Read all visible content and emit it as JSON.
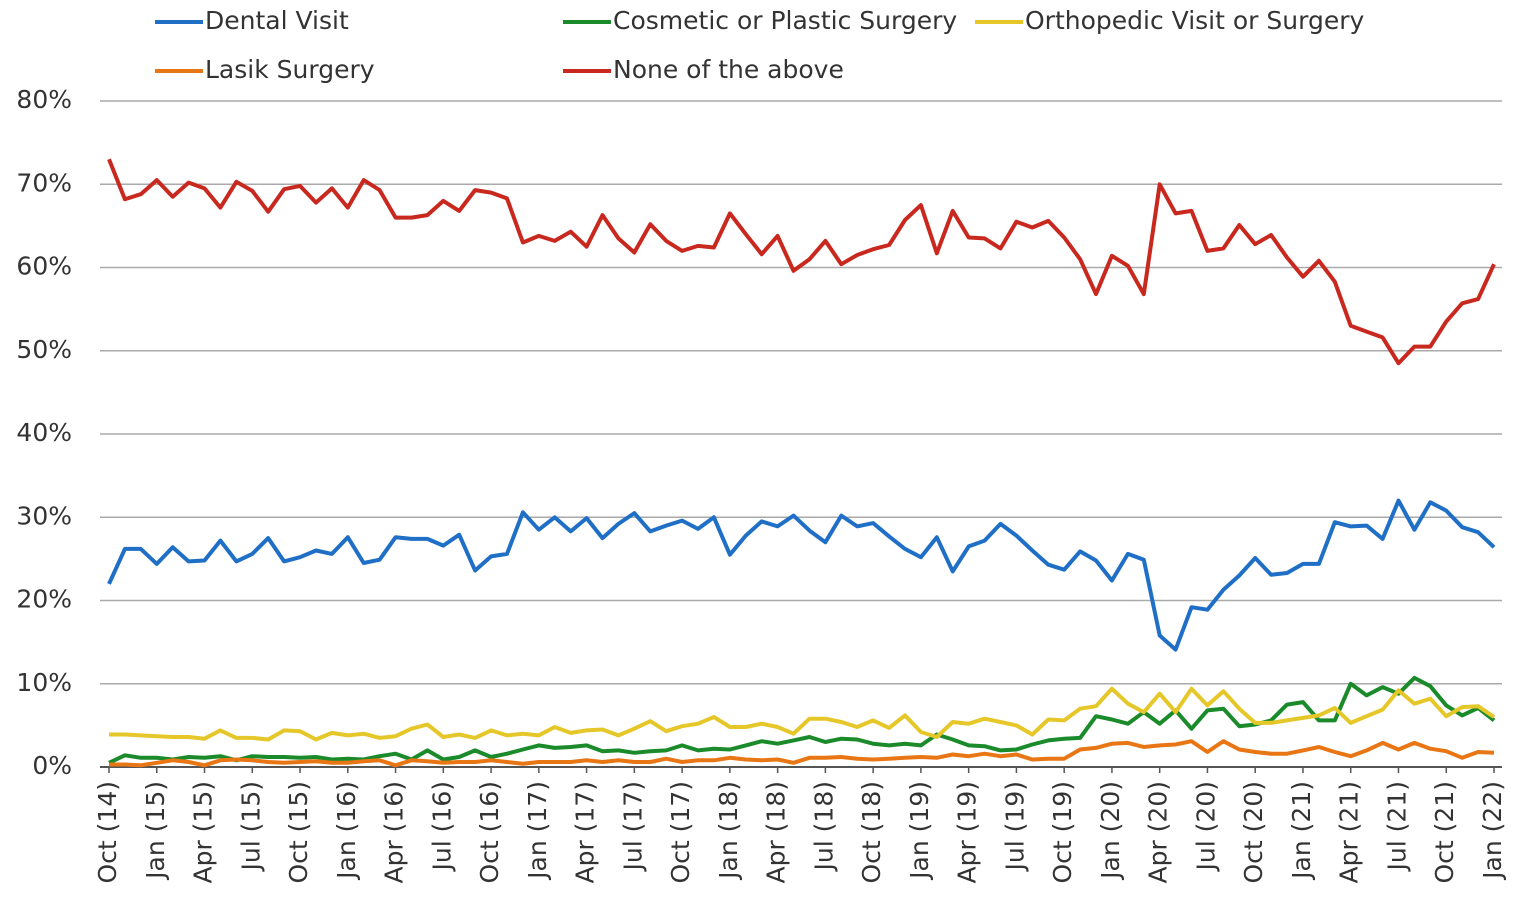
{
  "chart_data": {
    "type": "line",
    "categories": [
      "Oct (14)",
      null,
      null,
      "Jan (15)",
      null,
      null,
      "Apr (15)",
      null,
      null,
      "Jul (15)",
      null,
      null,
      "Oct (15)",
      null,
      null,
      "Jan (16)",
      null,
      null,
      "Apr (16)",
      null,
      null,
      "Jul (16)",
      null,
      null,
      "Oct (16)",
      null,
      null,
      "Jan (17)",
      null,
      null,
      "Apr (17)",
      null,
      null,
      "Jul (17)",
      null,
      null,
      "Oct (17)",
      null,
      null,
      "Jan (18)",
      null,
      null,
      "Apr (18)",
      null,
      null,
      "Jul (18)",
      null,
      null,
      "Oct (18)",
      null,
      null,
      "Jan (19)",
      null,
      null,
      "Apr (19)",
      null,
      null,
      "Jul (19)",
      null,
      null,
      "Oct (19)",
      null,
      null,
      "Jan (20)",
      null,
      null,
      "Apr (20)",
      null,
      null,
      "Jul (20)",
      null,
      null,
      "Oct (20)",
      null,
      null,
      "Jan (21)",
      null,
      null,
      "Apr (21)",
      null,
      null,
      "Jul (21)",
      null,
      null,
      "Oct (21)",
      null,
      null,
      "Jan (22)"
    ],
    "series": [
      {
        "name": "Dental Visit",
        "color": "#1f6fc6",
        "values": [
          22,
          26.2,
          26.2,
          24.4,
          26.4,
          24.7,
          24.8,
          27.2,
          24.7,
          25.6,
          27.5,
          24.7,
          25.2,
          26,
          25.6,
          27.6,
          24.5,
          24.9,
          27.6,
          27.4,
          27.4,
          26.6,
          27.9,
          23.6,
          25.3,
          25.6,
          30.6,
          28.5,
          30,
          28.3,
          29.9,
          27.5,
          29.2,
          30.5,
          28.3,
          29,
          29.6,
          28.6,
          30,
          25.5,
          27.8,
          29.5,
          28.9,
          30.2,
          28.4,
          27,
          30.2,
          28.9,
          29.3,
          27.7,
          26.2,
          25.2,
          27.6,
          23.5,
          26.5,
          27.2,
          29.2,
          27.8,
          26,
          24.3,
          23.7,
          25.9,
          24.8,
          22.4,
          25.6,
          24.9,
          15.8,
          14.1,
          19.2,
          18.9,
          21.3,
          23,
          25.1,
          23.1,
          23.3,
          24.4,
          24.4,
          29.4,
          28.9,
          29,
          27.4,
          32,
          28.5,
          31.8,
          30.8,
          28.8,
          28.2,
          26.4
        ]
      },
      {
        "name": "Cosmetic or Plastic Surgery",
        "color": "#1a8a2a",
        "values": [
          0.5,
          1.4,
          1.1,
          1.1,
          0.9,
          1.2,
          1.1,
          1.3,
          0.8,
          1.3,
          1.2,
          1.2,
          1.1,
          1.2,
          0.9,
          1,
          0.9,
          1.3,
          1.6,
          0.9,
          2,
          0.9,
          1.2,
          2,
          1.2,
          1.6,
          2.1,
          2.6,
          2.3,
          2.4,
          2.6,
          1.9,
          2,
          1.7,
          1.9,
          2,
          2.6,
          2,
          2.2,
          2.1,
          2.6,
          3.1,
          2.8,
          3.2,
          3.6,
          3,
          3.4,
          3.3,
          2.8,
          2.6,
          2.8,
          2.6,
          3.9,
          3.3,
          2.6,
          2.5,
          2,
          2.1,
          2.7,
          3.2,
          3.4,
          3.5,
          6.1,
          5.7,
          5.2,
          6.6,
          5.2,
          6.8,
          4.6,
          6.8,
          7,
          4.9,
          5.1,
          5.6,
          7.5,
          7.8,
          5.6,
          5.6,
          10,
          8.6,
          9.6,
          8.8,
          10.7,
          9.7,
          7.4,
          6.2,
          7.1,
          5.6
        ]
      },
      {
        "name": "Orthopedic Visit or Surgery",
        "color": "#e6c72a",
        "values": [
          3.9,
          3.9,
          3.8,
          3.7,
          3.6,
          3.6,
          3.4,
          4.4,
          3.5,
          3.5,
          3.3,
          4.4,
          4.3,
          3.3,
          4.1,
          3.8,
          4,
          3.5,
          3.7,
          4.6,
          5.1,
          3.6,
          3.9,
          3.5,
          4.4,
          3.8,
          4,
          3.8,
          4.8,
          4.1,
          4.4,
          4.5,
          3.8,
          4.6,
          5.5,
          4.3,
          4.9,
          5.2,
          6,
          4.8,
          4.8,
          5.2,
          4.8,
          4,
          5.8,
          5.8,
          5.4,
          4.8,
          5.6,
          4.7,
          6.2,
          4.2,
          3.6,
          5.4,
          5.2,
          5.8,
          5.4,
          5,
          3.9,
          5.7,
          5.6,
          7,
          7.3,
          9.4,
          7.6,
          6.6,
          8.8,
          6.6,
          9.4,
          7.4,
          9.1,
          7,
          5.3,
          5.3,
          5.6,
          5.9,
          6.2,
          7.1,
          5.3,
          6.1,
          6.9,
          9.2,
          7.6,
          8.2,
          6.1,
          7.2,
          7.3,
          6
        ]
      },
      {
        "name": "Lasik Surgery",
        "color": "#e87614",
        "values": [
          0.3,
          0.3,
          0.2,
          0.5,
          0.8,
          0.6,
          0.2,
          0.8,
          0.9,
          0.8,
          0.6,
          0.5,
          0.6,
          0.7,
          0.5,
          0.5,
          0.7,
          0.8,
          0.2,
          0.8,
          0.7,
          0.5,
          0.6,
          0.6,
          0.8,
          0.6,
          0.4,
          0.6,
          0.6,
          0.6,
          0.8,
          0.6,
          0.8,
          0.6,
          0.6,
          1,
          0.6,
          0.8,
          0.8,
          1.1,
          0.9,
          0.8,
          0.9,
          0.5,
          1.1,
          1.1,
          1.2,
          1,
          0.9,
          1,
          1.1,
          1.2,
          1.1,
          1.5,
          1.3,
          1.6,
          1.3,
          1.5,
          0.9,
          1,
          1,
          2.1,
          2.3,
          2.8,
          2.9,
          2.4,
          2.6,
          2.7,
          3.1,
          1.8,
          3.1,
          2.1,
          1.8,
          1.6,
          1.6,
          2,
          2.4,
          1.8,
          1.3,
          2,
          2.9,
          2.1,
          2.9,
          2.2,
          1.9,
          1.1,
          1.8,
          1.7
        ]
      },
      {
        "name": "None of the above",
        "color": "#c8281e",
        "values": [
          73,
          68.2,
          68.8,
          70.5,
          68.5,
          70.2,
          69.5,
          67.2,
          70.3,
          69.2,
          66.7,
          69.4,
          69.8,
          67.8,
          69.5,
          67.2,
          70.5,
          69.3,
          66,
          66,
          66.3,
          68,
          66.8,
          69.3,
          69,
          68.3,
          63,
          63.8,
          63.2,
          64.3,
          62.5,
          66.3,
          63.5,
          61.8,
          65.2,
          63.2,
          62,
          62.6,
          62.4,
          66.5,
          64,
          61.6,
          63.8,
          59.6,
          61,
          63.2,
          60.4,
          61.5,
          62.2,
          62.7,
          65.7,
          67.5,
          61.7,
          66.8,
          63.6,
          63.5,
          62.3,
          65.5,
          64.8,
          65.6,
          63.6,
          61,
          56.8,
          61.4,
          60.2,
          56.8,
          70,
          66.5,
          66.8,
          62,
          62.3,
          65.1,
          62.8,
          63.9,
          61.2,
          58.9,
          60.8,
          58.3,
          53,
          52.3,
          51.6,
          48.5,
          50.5,
          50.5,
          53.5,
          55.7,
          56.2,
          60.4
        ]
      }
    ],
    "ylim": [
      0,
      80
    ],
    "yticks": [
      {
        "value": 0,
        "label": "0%"
      },
      {
        "value": 10,
        "label": "10%"
      },
      {
        "value": 20,
        "label": "20%"
      },
      {
        "value": 30,
        "label": "30%"
      },
      {
        "value": 40,
        "label": "40%"
      },
      {
        "value": 50,
        "label": "50%"
      },
      {
        "value": 60,
        "label": "60%"
      },
      {
        "value": 70,
        "label": "70%"
      },
      {
        "value": 80,
        "label": "80%"
      }
    ],
    "grid": true,
    "legend": "top"
  }
}
